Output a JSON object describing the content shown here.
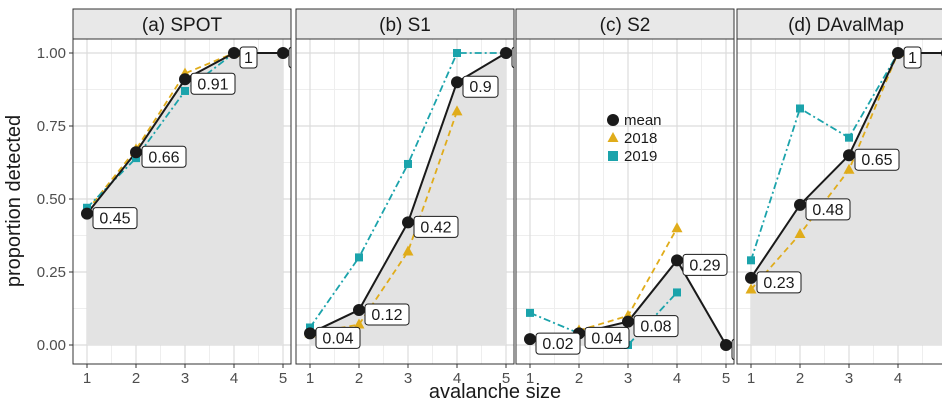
{
  "chart_data": {
    "type": "line",
    "xlabel": "avalanche size",
    "ylabel": "proportion detected",
    "x": [
      1,
      2,
      3,
      4,
      5
    ],
    "x_ticks": [
      "1",
      "2",
      "3",
      "4",
      "5"
    ],
    "y_ticks": [
      "0.00",
      "0.25",
      "0.50",
      "0.75",
      "1.00"
    ],
    "ylim": [
      0,
      1
    ],
    "grid": true,
    "legend": {
      "placement": "inside panel (c), upper right",
      "entries": [
        {
          "name": "mean",
          "color": "#1a1a1a",
          "marker": "circle",
          "line": "solid"
        },
        {
          "name": "2018",
          "color": "#E0AC1A",
          "marker": "triangle",
          "line": "dashed"
        },
        {
          "name": "2019",
          "color": "#1BA3AB",
          "marker": "square",
          "line": "dot-dash"
        }
      ]
    },
    "panels": [
      {
        "title": "(a) SPOT",
        "mean": [
          0.45,
          0.66,
          0.91,
          1,
          1
        ],
        "y2018": [
          0.46,
          0.67,
          0.93,
          1,
          null
        ],
        "y2019": [
          0.47,
          0.64,
          0.87,
          1,
          null
        ],
        "labels": [
          "0.45",
          "0.66",
          "0.91",
          "1",
          "1"
        ]
      },
      {
        "title": "(b) S1",
        "mean": [
          0.04,
          0.12,
          0.42,
          0.9,
          1
        ],
        "y2018": [
          0.04,
          0.07,
          0.32,
          0.8,
          null
        ],
        "y2019": [
          0.06,
          0.3,
          0.62,
          1.0,
          1.0
        ],
        "labels": [
          "0.04",
          "0.12",
          "0.42",
          "0.9",
          "1"
        ]
      },
      {
        "title": "(c) S2",
        "mean": [
          0.02,
          0.04,
          0.08,
          0.29,
          0
        ],
        "y2018": [
          null,
          0.05,
          0.1,
          0.4,
          null
        ],
        "y2019": [
          0.11,
          0.04,
          0.0,
          0.18,
          null
        ],
        "labels": [
          "0.02",
          "0.04",
          "0.08",
          "0.29",
          "0"
        ]
      },
      {
        "title": "(d) DAvalMap",
        "mean": [
          0.23,
          0.48,
          0.65,
          1,
          1
        ],
        "y2018": [
          0.19,
          0.38,
          0.6,
          1,
          null
        ],
        "y2019": [
          0.29,
          0.81,
          0.71,
          1,
          null
        ],
        "labels": [
          "0.23",
          "0.48",
          "0.65",
          "1",
          "1"
        ]
      }
    ]
  }
}
